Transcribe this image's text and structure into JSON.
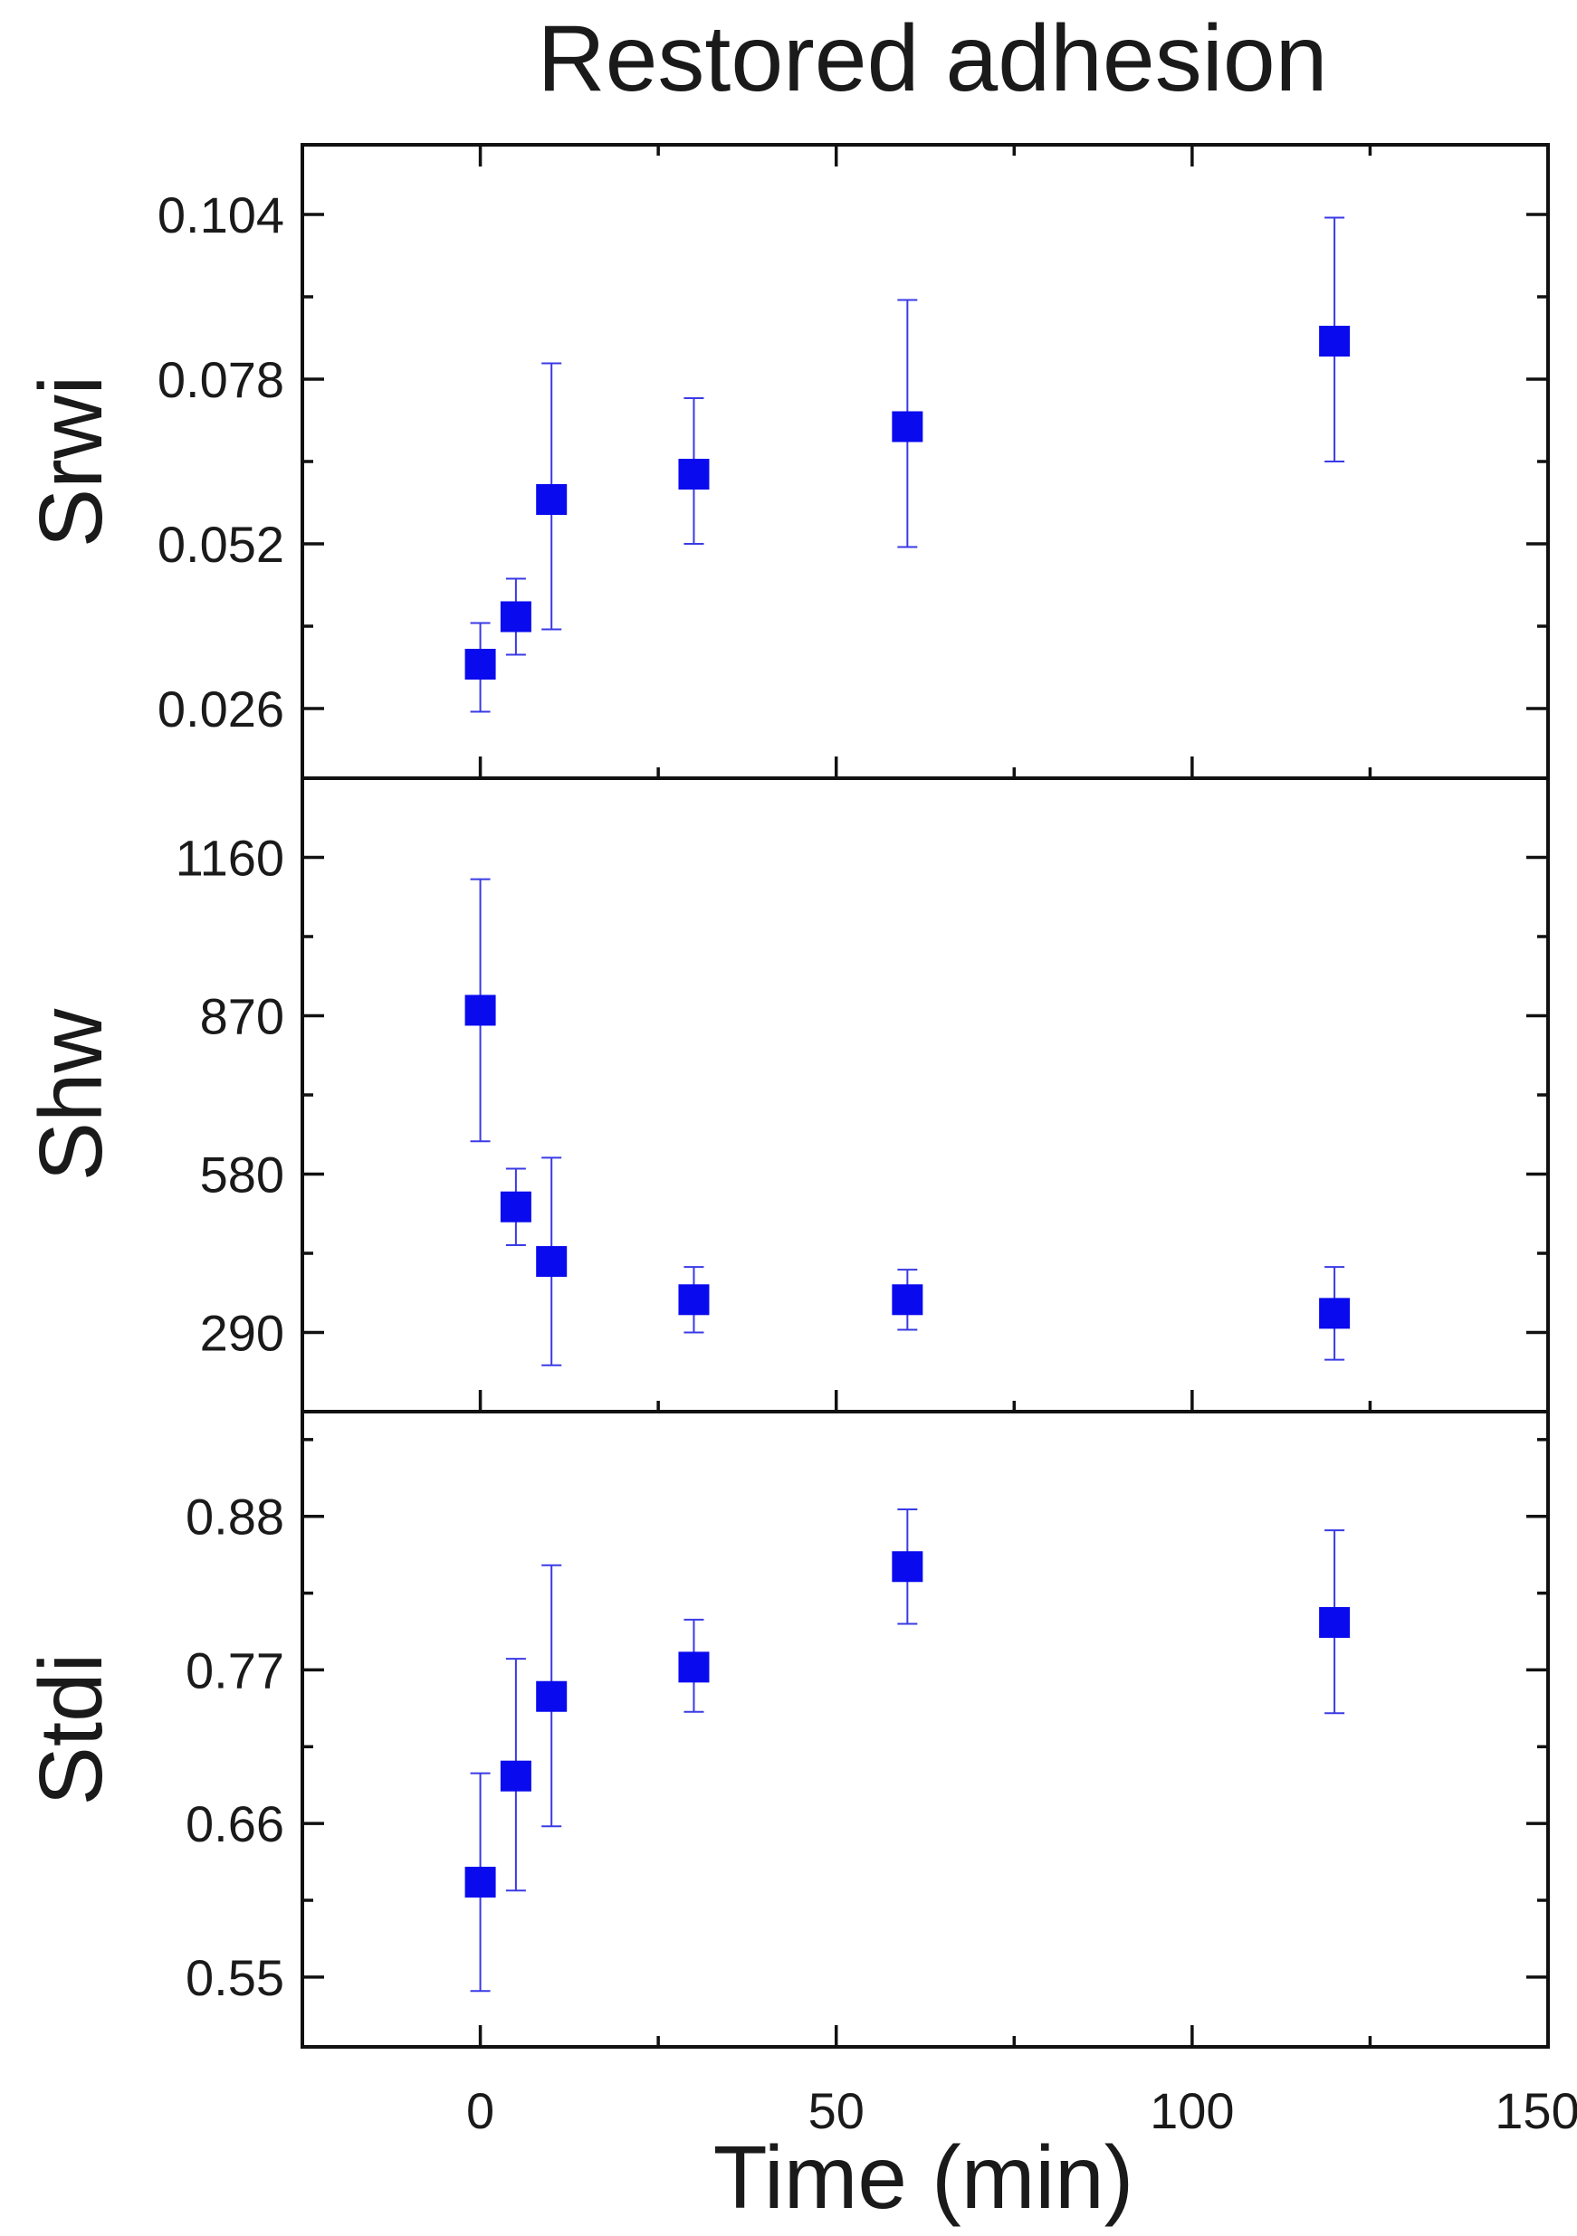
{
  "chart_data": {
    "type": "scatter",
    "title": "Restored adhesion",
    "xlabel": "Time (min)",
    "xlim": [
      -25,
      150
    ],
    "xticks": [
      0,
      50,
      100,
      150
    ],
    "marker_color": "#0a0aee",
    "errorbar_color": "#3a3ae6",
    "panels": [
      {
        "ylabel": "Srwi",
        "ylim": [
          0.015,
          0.115
        ],
        "yticks": [
          0.026,
          0.052,
          0.078,
          0.104
        ],
        "ytick_labels": [
          "0.026",
          "0.052",
          "0.078",
          "0.104"
        ],
        "x": [
          0,
          5,
          10,
          30,
          60,
          120
        ],
        "y": [
          0.033,
          0.0405,
          0.059,
          0.063,
          0.0705,
          0.084
        ],
        "err_low": [
          0.0255,
          0.0345,
          0.0385,
          0.052,
          0.0515,
          0.065
        ],
        "err_high": [
          0.0395,
          0.0465,
          0.0805,
          0.075,
          0.0905,
          0.1035
        ]
      },
      {
        "ylabel": "Shw",
        "ylim": [
          145,
          1305
        ],
        "yticks": [
          290,
          580,
          870,
          1160
        ],
        "ytick_labels": [
          "290",
          "580",
          "870",
          "1160"
        ],
        "x": [
          0,
          5,
          10,
          30,
          60,
          120
        ],
        "y": [
          880,
          520,
          420,
          350,
          350,
          325
        ],
        "err_low": [
          640,
          450,
          230,
          290,
          295,
          240
        ],
        "err_high": [
          1120,
          590,
          610,
          410,
          405,
          410
        ]
      },
      {
        "ylabel": "Stdi",
        "ylim": [
          0.5,
          0.955
        ],
        "yticks": [
          0.55,
          0.66,
          0.77,
          0.88
        ],
        "ytick_labels": [
          "0.55",
          "0.66",
          "0.77",
          "0.88"
        ],
        "x": [
          0,
          5,
          10,
          30,
          60,
          120
        ],
        "y": [
          0.618,
          0.694,
          0.751,
          0.772,
          0.844,
          0.804
        ],
        "err_low": [
          0.54,
          0.612,
          0.658,
          0.74,
          0.803,
          0.739
        ],
        "err_high": [
          0.696,
          0.778,
          0.845,
          0.806,
          0.885,
          0.87
        ]
      }
    ]
  }
}
